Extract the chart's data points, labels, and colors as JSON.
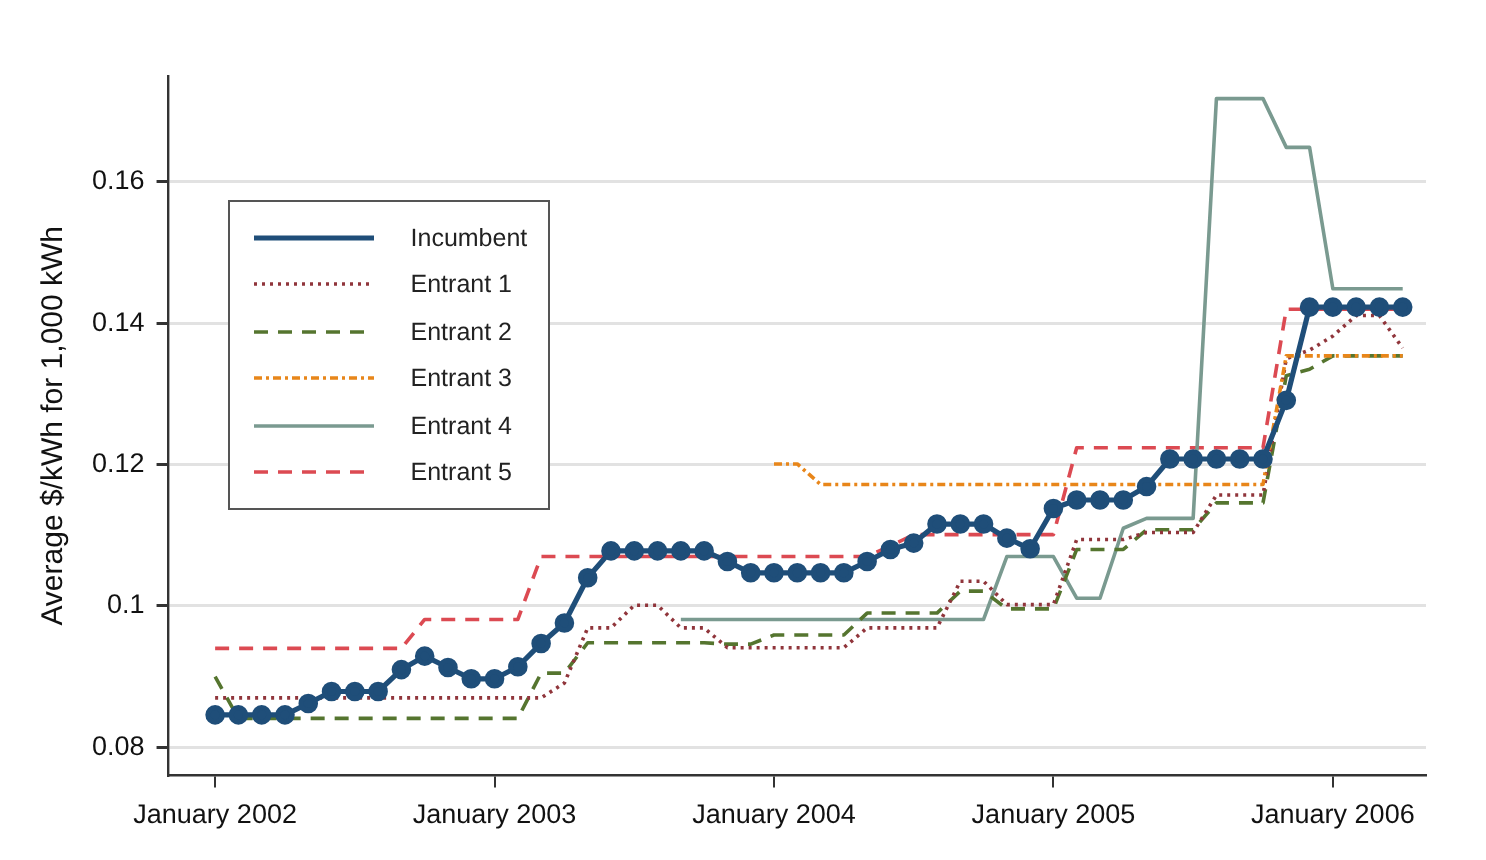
{
  "chart_data": {
    "type": "line",
    "ylabel": "Average $/kWh for 1,000 kWh",
    "x": [
      "2002-01",
      "2002-02",
      "2002-03",
      "2002-04",
      "2002-05",
      "2002-06",
      "2002-07",
      "2002-08",
      "2002-09",
      "2002-10",
      "2002-11",
      "2002-12",
      "2003-01",
      "2003-02",
      "2003-03",
      "2003-04",
      "2003-05",
      "2003-06",
      "2003-07",
      "2003-08",
      "2003-09",
      "2003-10",
      "2003-11",
      "2003-12",
      "2004-01",
      "2004-02",
      "2004-03",
      "2004-04",
      "2004-05",
      "2004-06",
      "2004-07",
      "2004-08",
      "2004-09",
      "2004-10",
      "2004-11",
      "2004-12",
      "2005-01",
      "2005-02",
      "2005-03",
      "2005-04",
      "2005-05",
      "2005-06",
      "2005-07",
      "2005-08",
      "2005-09",
      "2005-10",
      "2005-11",
      "2005-12",
      "2006-01",
      "2006-02",
      "2006-03",
      "2006-04"
    ],
    "series": [
      {
        "name": "Incumbent",
        "color": "#1f4e79",
        "marker": "circle",
        "line_style": "solid",
        "values": [
          0.0846,
          0.0846,
          0.0846,
          0.0846,
          0.0862,
          0.0879,
          0.0879,
          0.0879,
          0.091,
          0.0929,
          0.0913,
          0.0897,
          0.0897,
          0.0914,
          0.0947,
          0.0976,
          0.104,
          0.1078,
          0.1078,
          0.1078,
          0.1078,
          0.1078,
          0.1063,
          0.1047,
          0.1047,
          0.1047,
          0.1047,
          0.1047,
          0.1063,
          0.108,
          0.1089,
          0.1116,
          0.1116,
          0.1116,
          0.1096,
          0.1081,
          0.1138,
          0.115,
          0.115,
          0.115,
          0.1169,
          0.1208,
          0.1208,
          0.1208,
          0.1208,
          0.1208,
          0.1291,
          0.1423,
          0.1423,
          0.1423,
          0.1423,
          0.1423
        ]
      },
      {
        "name": "Entrant 1",
        "color": "#90353b",
        "marker": "none",
        "line_style": "dotted",
        "values": [
          0.087,
          0.087,
          0.087,
          0.087,
          0.087,
          0.087,
          0.087,
          0.087,
          0.087,
          0.087,
          0.087,
          0.087,
          0.087,
          0.087,
          0.087,
          0.0891,
          0.0969,
          0.0969,
          0.1001,
          0.1001,
          0.0969,
          0.0969,
          0.0941,
          0.0941,
          0.0941,
          0.0941,
          0.0941,
          0.0941,
          0.0969,
          0.0969,
          0.0969,
          0.0969,
          0.1035,
          0.1035,
          0.1002,
          0.1002,
          0.1002,
          0.1094,
          0.1094,
          0.1094,
          0.1104,
          0.1104,
          0.1104,
          0.1157,
          0.1157,
          0.1157,
          0.135,
          0.1362,
          0.1382,
          0.1411,
          0.1411,
          0.1365
        ]
      },
      {
        "name": "Entrant 2",
        "color": "#55752f",
        "marker": "none",
        "line_style": "dashed",
        "values": [
          0.09,
          0.0841,
          0.0841,
          0.0841,
          0.0841,
          0.0841,
          0.0841,
          0.0841,
          0.0841,
          0.0841,
          0.0841,
          0.0841,
          0.0841,
          0.0841,
          0.0905,
          0.0905,
          0.0948,
          0.0948,
          0.0948,
          0.0948,
          0.0948,
          0.0948,
          0.0946,
          0.0946,
          0.0959,
          0.0959,
          0.0959,
          0.0959,
          0.099,
          0.099,
          0.099,
          0.099,
          0.1021,
          0.1021,
          0.0996,
          0.0996,
          0.0996,
          0.108,
          0.108,
          0.108,
          0.1108,
          0.1108,
          0.1108,
          0.1146,
          0.1146,
          0.1146,
          0.1326,
          0.1335,
          0.1354,
          0.1354,
          0.1354,
          0.1354
        ]
      },
      {
        "name": "Entrant 3",
        "color": "#e8861a",
        "marker": "none",
        "line_style": "dashdot",
        "values": [
          null,
          null,
          null,
          null,
          null,
          null,
          null,
          null,
          null,
          null,
          null,
          null,
          null,
          null,
          null,
          null,
          null,
          null,
          null,
          null,
          null,
          null,
          null,
          null,
          0.1201,
          0.1201,
          0.1172,
          0.1172,
          0.1172,
          0.1172,
          0.1172,
          0.1172,
          0.1172,
          0.1172,
          0.1172,
          0.1172,
          0.1172,
          0.1172,
          0.1172,
          0.1172,
          0.1172,
          0.1172,
          0.1172,
          0.1172,
          0.1172,
          0.1172,
          0.1354,
          0.1354,
          0.1354,
          0.1354,
          0.1354,
          0.1354
        ]
      },
      {
        "name": "Entrant 4",
        "color": "#7a9a90",
        "marker": "none",
        "line_style": "solid",
        "values": [
          null,
          null,
          null,
          null,
          null,
          null,
          null,
          null,
          null,
          null,
          null,
          null,
          null,
          null,
          null,
          null,
          null,
          null,
          null,
          null,
          0.0981,
          0.0981,
          0.0981,
          0.0981,
          0.0981,
          0.0981,
          0.0981,
          0.0981,
          0.0981,
          0.0981,
          0.0981,
          0.0981,
          0.0981,
          0.0981,
          0.107,
          0.107,
          0.107,
          0.1011,
          0.1011,
          0.111,
          0.1124,
          0.1124,
          0.1124,
          0.1718,
          0.1718,
          0.1718,
          0.1649,
          0.1649,
          0.1449,
          0.1449,
          0.1449,
          0.1449
        ]
      },
      {
        "name": "Entrant 5",
        "color": "#dc4a52",
        "marker": "none",
        "line_style": "dashed",
        "values": [
          0.094,
          0.094,
          0.094,
          0.094,
          0.094,
          0.094,
          0.094,
          0.094,
          0.094,
          0.0981,
          0.0981,
          0.0981,
          0.0981,
          0.0981,
          0.107,
          0.107,
          0.107,
          0.107,
          0.107,
          0.107,
          0.107,
          0.107,
          0.107,
          0.107,
          0.107,
          0.107,
          0.107,
          0.107,
          0.107,
          0.1085,
          0.1101,
          0.1101,
          0.1101,
          0.1101,
          0.1101,
          0.1101,
          0.1101,
          0.1224,
          0.1224,
          0.1224,
          0.1224,
          0.1224,
          0.1224,
          0.1224,
          0.1224,
          0.1224,
          0.142,
          0.142,
          0.142,
          0.142,
          0.142,
          0.142
        ]
      }
    ],
    "xlim": [
      "2001-11",
      "2006-05"
    ],
    "xticks": [
      {
        "value": "2002-01",
        "label": "January 2002"
      },
      {
        "value": "2003-01",
        "label": "January 2003"
      },
      {
        "value": "2004-01",
        "label": "January 2004"
      },
      {
        "value": "2005-01",
        "label": "January 2005"
      },
      {
        "value": "2006-01",
        "label": "January 2006"
      }
    ],
    "ylim": [
      0.076,
      0.175
    ],
    "yticks": [
      0.08,
      0.1,
      0.12,
      0.14,
      0.16
    ],
    "grid": "y",
    "legend": "top left"
  }
}
